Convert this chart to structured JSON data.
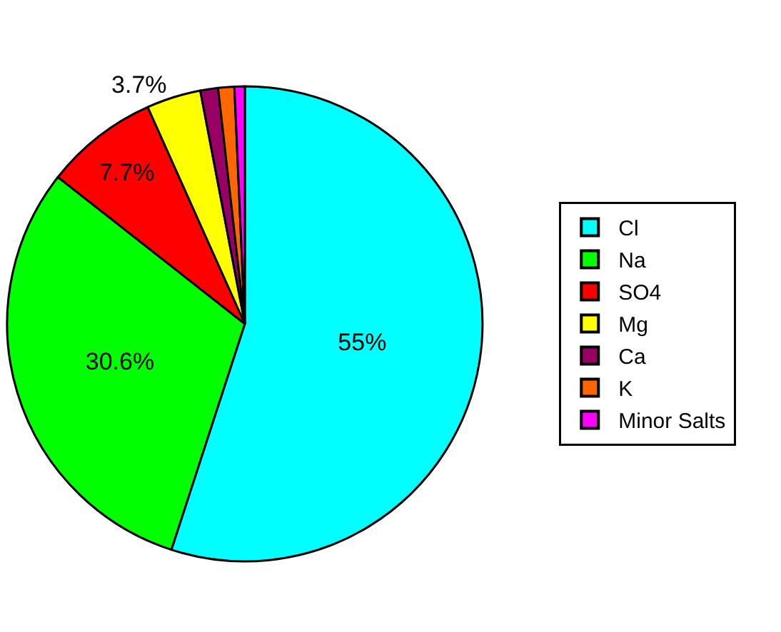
{
  "chart_data": {
    "type": "pie",
    "categories": [
      "Cl",
      "Na",
      "SO4",
      "Mg",
      "Ca",
      "K",
      "Minor Salts"
    ],
    "values": [
      55,
      30.6,
      7.7,
      3.7,
      1.2,
      1.1,
      0.7
    ],
    "colors": [
      "#00ffff",
      "#00ff00",
      "#ff0000",
      "#ffff00",
      "#990066",
      "#ff6600",
      "#ff00ff"
    ],
    "value_labels": [
      "55%",
      "30.6%",
      "7.7%",
      "3.7%",
      null,
      null,
      null
    ],
    "legend": "right"
  }
}
